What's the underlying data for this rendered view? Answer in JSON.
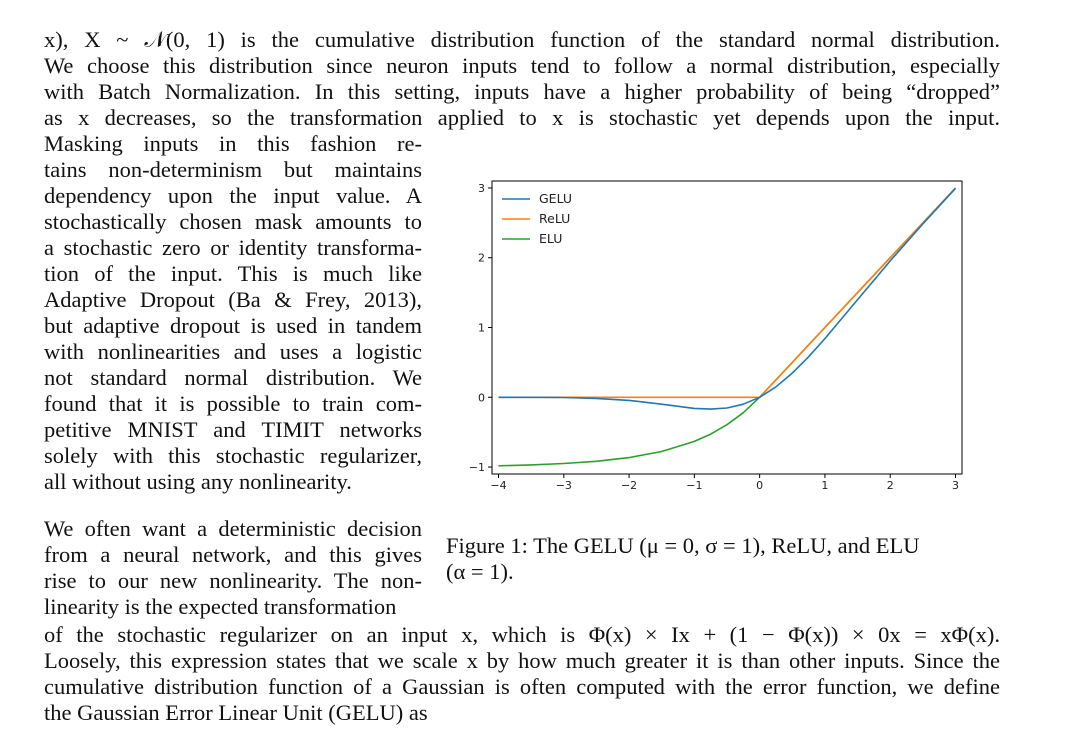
{
  "body_lines": [
    "x), X ~ 𝒩(0, 1) is the cumulative distribution function of the standard normal distribution.",
    "We choose this distribution since neuron inputs tend to follow a normal distribution, especially",
    "with Batch Normalization. In this setting, inputs have a higher probability of being “dropped”",
    "as x decreases, so the transformation applied to x is stochastic yet depends upon the input."
  ],
  "left_column_lines": [
    "Masking inputs in this fashion re-",
    "tains non-determinism but maintains",
    "dependency upon the input value. A",
    "stochastically chosen mask amounts to",
    "a stochastic zero or identity transforma-",
    "tion of the input. This is much like",
    "Adaptive Dropout (Ba & Frey, 2013),",
    "but adaptive dropout is used in tandem",
    "with nonlinearities and uses a logistic",
    "not standard normal distribution. We",
    "found that it is possible to train com-",
    "petitive MNIST and TIMIT networks",
    "solely with this stochastic regularizer,",
    "all without using any nonlinearity."
  ],
  "second_para_lines": [
    "We often want a deterministic decision",
    "from a neural network, and this gives",
    "rise to our new nonlinearity. The non-",
    "linearity is the expected transformation"
  ],
  "closing_lines": [
    "of the stochastic regularizer on an input x, which is Φ(x) × Ix + (1 − Φ(x)) × 0x = xΦ(x).",
    "Loosely, this expression states that we scale x by how much greater it is than other inputs. Since the",
    "cumulative distribution function of a Gaussian is often computed with the error function, we define",
    "the Gaussian Error Linear Unit (GELU) as"
  ],
  "caption_lines": [
    "Figure 1: The GELU (μ = 0, σ = 1), ReLU, and ELU",
    "(α = 1)."
  ],
  "chart_data": {
    "type": "line",
    "title": "",
    "xlabel": "",
    "ylabel": "",
    "xlim": [
      -4.1,
      3.1
    ],
    "ylim": [
      -1.1,
      3.1
    ],
    "x_ticks": [
      -4,
      -3,
      -2,
      -1,
      0,
      1,
      2,
      3
    ],
    "y_ticks": [
      -1,
      0,
      1,
      2,
      3
    ],
    "grid": false,
    "legend_position": "top-left",
    "x": [
      -4,
      -3.5,
      -3,
      -2.5,
      -2,
      -1.5,
      -1,
      -0.75,
      -0.5,
      -0.25,
      0,
      0.25,
      0.5,
      0.75,
      1,
      1.5,
      2,
      2.5,
      3
    ],
    "series": [
      {
        "name": "GELU",
        "color": "#1f77b4",
        "values": [
          0.0,
          -0.001,
          -0.004,
          -0.016,
          -0.045,
          -0.1,
          -0.159,
          -0.17,
          -0.154,
          -0.1,
          0.0,
          0.15,
          0.346,
          0.58,
          0.841,
          1.4,
          1.955,
          2.484,
          2.996
        ]
      },
      {
        "name": "ReLU",
        "color": "#ff7f0e",
        "values": [
          0,
          0,
          0,
          0,
          0,
          0,
          0,
          0,
          0,
          0,
          0,
          0.25,
          0.5,
          0.75,
          1,
          1.5,
          2,
          2.5,
          3
        ]
      },
      {
        "name": "ELU",
        "color": "#2ca02c",
        "values": [
          -0.982,
          -0.97,
          -0.95,
          -0.918,
          -0.865,
          -0.777,
          -0.632,
          -0.528,
          -0.393,
          -0.221,
          0,
          0.25,
          0.5,
          0.75,
          1,
          1.5,
          2,
          2.5,
          3
        ]
      }
    ]
  }
}
